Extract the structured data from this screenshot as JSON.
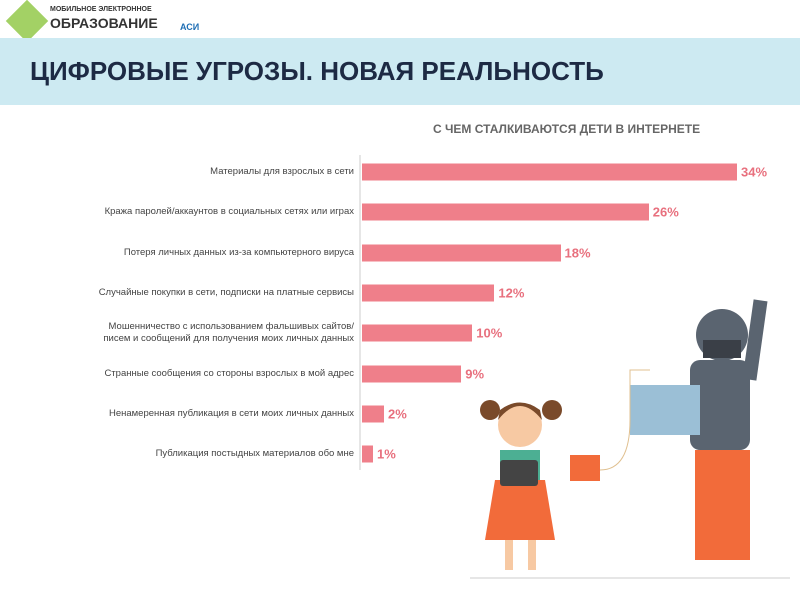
{
  "header": {
    "logo_line1": "МОБИЛЬНОЕ ЭЛЕКТРОННОЕ",
    "logo_line2": "ОБРАЗОВАНИЕ",
    "logo_partner": "АСИ",
    "title": "ЦИФРОВЫЕ УГРОЗЫ. НОВАЯ РЕАЛЬНОСТЬ"
  },
  "chart_data": {
    "type": "hbar",
    "title": "С ЧЕМ СТАЛКИВАЮТСЯ ДЕТИ В ИНТЕРНЕТЕ",
    "categories": [
      "Материалы для взрослых в сети",
      "Кража паролей/аккаунтов в социальных сетях или играх",
      "Потеря личных данных из-за компьютерного вируса",
      "Случайные покупки в сети, подписки на платные сервисы",
      "Мошенничество с использованием фальшивых сайтов/\nписем и сообщений для получения моих личных данных",
      "Странные сообщения со стороны взрослых в мой адрес",
      "Ненамеренная публикация в сети моих личных данных",
      "Публикация постыдных материалов обо мне"
    ],
    "values": [
      34,
      26,
      18,
      12,
      10,
      9,
      2,
      1
    ],
    "value_labels": [
      "34%",
      "26%",
      "18%",
      "12%",
      "10%",
      "9%",
      "2%",
      "1%"
    ],
    "color": "#ef7f8a"
  }
}
